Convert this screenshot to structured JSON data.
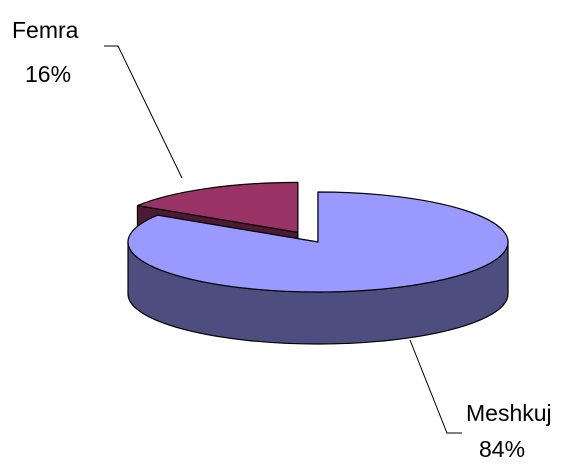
{
  "chart_data": {
    "type": "pie",
    "style": "3d-exploded",
    "slices": [
      {
        "name": "Meshkuj",
        "value": 84,
        "percent_label": "84%",
        "color": "#9999ff",
        "side_color": "#4d4d80"
      },
      {
        "name": "Femra",
        "value": 16,
        "percent_label": "16%",
        "color": "#993366",
        "side_color": "#4d1933"
      }
    ],
    "legend": "none",
    "data_labels": "category-and-percent"
  }
}
